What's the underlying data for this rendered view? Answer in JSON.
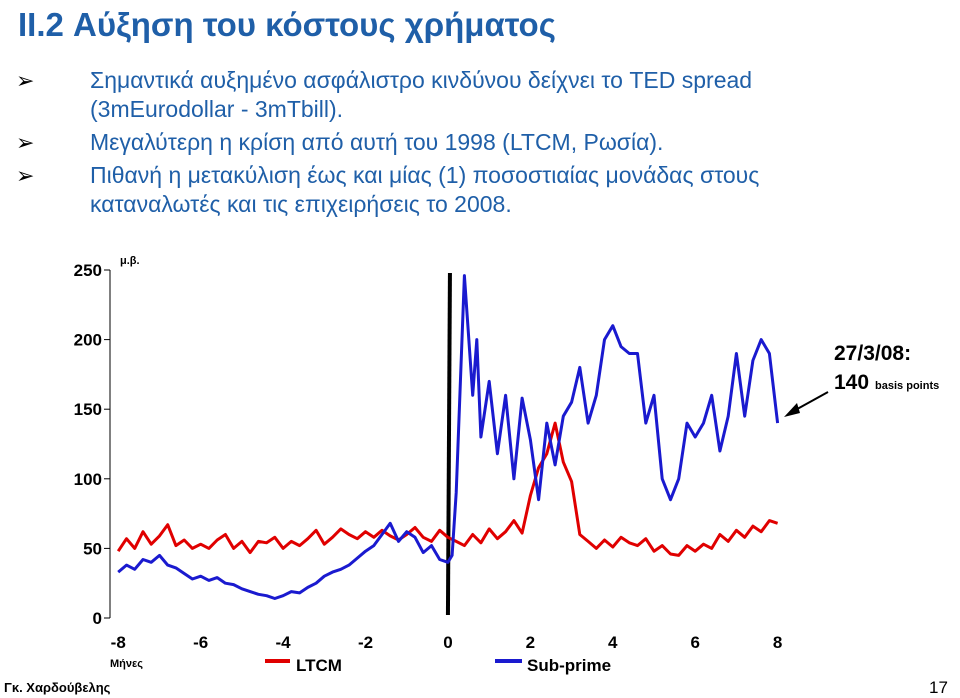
{
  "slide": {
    "title": "II.2  Αύξηση του κόστους χρήματος",
    "bullets": [
      {
        "lines": [
          "Σημαντικά αυξημένο ασφάλιστρο κινδύνου δείχνει το TED spread",
          "(3mEurodollar - 3mTbill)."
        ]
      },
      {
        "lines": [
          "Μεγαλύτερη η κρίση από αυτή του 1998 (LTCM, Ρωσία)."
        ]
      },
      {
        "lines": [
          "Πιθανή η μετακύλιση έως και μίας (1) ποσοστιαίας μονάδας στους",
          "καταναλωτές και τις επιχειρήσεις το 2008."
        ]
      }
    ],
    "bullet_icon": "arrow-bullet-icon",
    "author": "Γκ. Χαρδούβελης",
    "page_number": "17"
  },
  "annotation": {
    "date": "27/3/08:",
    "value": "140",
    "unit": "basis points"
  },
  "colors": {
    "title": "#1F5FA8",
    "ltcm": "#E00000",
    "subprime": "#1A1ACF",
    "axis": "#000000"
  },
  "chart_data": {
    "type": "line",
    "ylabel": "μ.β.",
    "xlabel": "Μήνες",
    "xlim": [
      -8.2,
      8.3
    ],
    "ylim": [
      0,
      250
    ],
    "x_ticks": [
      -8,
      -6,
      -4,
      -2,
      0,
      2,
      4,
      6,
      8
    ],
    "y_ticks": [
      0,
      50,
      100,
      150,
      200,
      250
    ],
    "x_tick_labels": [
      "-8",
      "-6",
      "-4",
      "-2",
      "0",
      "2",
      "4",
      "6",
      "8"
    ],
    "y_tick_labels": [
      "0",
      "50",
      "100",
      "150",
      "200",
      "250"
    ],
    "vertical_marker_x": 0,
    "series": [
      {
        "name": "LTCM",
        "color": "#E00000",
        "x": [
          -8,
          -7.8,
          -7.6,
          -7.4,
          -7.2,
          -7,
          -6.8,
          -6.6,
          -6.4,
          -6.2,
          -6,
          -5.8,
          -5.6,
          -5.4,
          -5.2,
          -5,
          -4.8,
          -4.6,
          -4.4,
          -4.2,
          -4,
          -3.8,
          -3.6,
          -3.4,
          -3.2,
          -3,
          -2.8,
          -2.6,
          -2.4,
          -2.2,
          -2,
          -1.8,
          -1.6,
          -1.4,
          -1.2,
          -1,
          -0.8,
          -0.6,
          -0.4,
          -0.2,
          0,
          0.2,
          0.4,
          0.6,
          0.8,
          1,
          1.2,
          1.4,
          1.6,
          1.8,
          2,
          2.2,
          2.4,
          2.6,
          2.8,
          3,
          3.2,
          3.4,
          3.6,
          3.8,
          4,
          4.2,
          4.4,
          4.6,
          4.8,
          5,
          5.2,
          5.4,
          5.6,
          5.8,
          6,
          6.2,
          6.4,
          6.6,
          6.8,
          7,
          7.2,
          7.4,
          7.6,
          7.8,
          8
        ],
        "y": [
          48,
          57,
          50,
          62,
          53,
          59,
          67,
          52,
          56,
          50,
          53,
          50,
          56,
          60,
          50,
          55,
          47,
          55,
          54,
          58,
          50,
          55,
          52,
          57,
          63,
          53,
          58,
          64,
          60,
          57,
          62,
          58,
          63,
          59,
          56,
          60,
          65,
          58,
          55,
          63,
          58,
          55,
          52,
          60,
          54,
          64,
          57,
          62,
          70,
          61,
          88,
          108,
          118,
          140,
          112,
          98,
          60,
          55,
          50,
          56,
          51,
          58,
          54,
          52,
          57,
          48,
          52,
          46,
          45,
          52,
          48,
          53,
          50,
          60,
          55,
          63,
          58,
          66,
          62,
          70,
          68
        ]
      },
      {
        "name": "Sub-prime",
        "color": "#1A1ACF",
        "x": [
          -8,
          -7.8,
          -7.6,
          -7.4,
          -7.2,
          -7,
          -6.8,
          -6.6,
          -6.4,
          -6.2,
          -6,
          -5.8,
          -5.6,
          -5.4,
          -5.2,
          -5,
          -4.8,
          -4.6,
          -4.4,
          -4.2,
          -4,
          -3.8,
          -3.6,
          -3.4,
          -3.2,
          -3,
          -2.8,
          -2.6,
          -2.4,
          -2.2,
          -2,
          -1.8,
          -1.6,
          -1.4,
          -1.2,
          -1,
          -0.8,
          -0.6,
          -0.4,
          -0.2,
          0,
          0.1,
          0.2,
          0.4,
          0.6,
          0.7,
          0.8,
          1,
          1.2,
          1.4,
          1.6,
          1.8,
          2,
          2.2,
          2.4,
          2.6,
          2.8,
          3,
          3.2,
          3.4,
          3.6,
          3.8,
          4,
          4.2,
          4.4,
          4.6,
          4.8,
          5,
          5.2,
          5.4,
          5.6,
          5.8,
          6,
          6.2,
          6.4,
          6.6,
          6.8,
          7,
          7.2,
          7.4,
          7.6,
          7.8,
          8
        ],
        "y": [
          33,
          38,
          35,
          42,
          40,
          45,
          38,
          36,
          32,
          28,
          30,
          27,
          29,
          25,
          24,
          21,
          19,
          17,
          16,
          14,
          16,
          19,
          18,
          22,
          25,
          30,
          33,
          35,
          38,
          43,
          48,
          52,
          60,
          68,
          55,
          62,
          58,
          47,
          52,
          42,
          40,
          45,
          90,
          246,
          160,
          200,
          130,
          170,
          118,
          160,
          100,
          158,
          128,
          85,
          140,
          110,
          145,
          155,
          180,
          140,
          160,
          200,
          210,
          195,
          190,
          190,
          140,
          160,
          100,
          85,
          100,
          140,
          130,
          140,
          160,
          120,
          145,
          190,
          145,
          185,
          200,
          190,
          140
        ]
      }
    ]
  }
}
